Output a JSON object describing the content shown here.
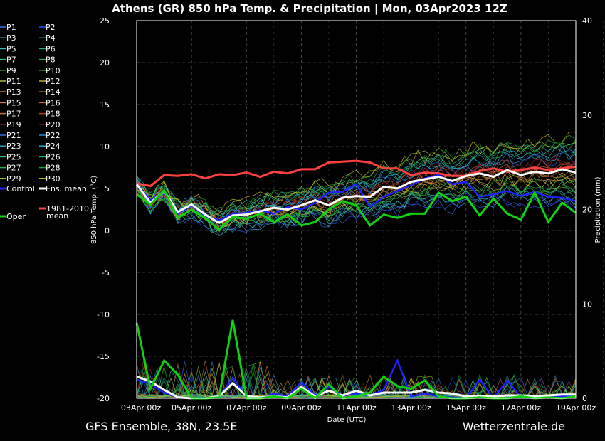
{
  "chart_data": {
    "type": "line",
    "title": "Athens  (GR)  850 hPa Temp. & Precipitation | Mon, 03Apr2023 12Z",
    "xlabel": "Date (UTC)",
    "ylabel": "850 hPa Temp. (°C)",
    "ylabel_right": "Precipitation (mm)",
    "footer_left": "GFS Ensemble, 38N, 23.5E",
    "footer_right": "Wetterzentrale.de",
    "x_ticks": [
      "03Apr 00z",
      "05Apr 00z",
      "07Apr 00z",
      "09Apr 00z",
      "11Apr 00z",
      "13Apr 00z",
      "15Apr 00z",
      "17Apr 00z",
      "19Apr 00z"
    ],
    "x_range_hours": [
      0,
      384
    ],
    "ylim": [
      -20,
      25
    ],
    "y_ticks": [
      25,
      20,
      15,
      10,
      5,
      0,
      -5,
      -10,
      -15,
      -20
    ],
    "ylim_right": [
      0,
      40
    ],
    "y_ticks_right": [
      40,
      30,
      20,
      10,
      0
    ],
    "grid": true,
    "legend_placement": "left",
    "legend": [
      {
        "name": "P1",
        "color": "#3c6cff"
      },
      {
        "name": "P2",
        "color": "#2255ff"
      },
      {
        "name": "P3",
        "color": "#4aa0d0"
      },
      {
        "name": "P4",
        "color": "#2a8fb0"
      },
      {
        "name": "P5",
        "color": "#30c0c0"
      },
      {
        "name": "P6",
        "color": "#20b090"
      },
      {
        "name": "P7",
        "color": "#20c070"
      },
      {
        "name": "P8",
        "color": "#30a850"
      },
      {
        "name": "P9",
        "color": "#40c030"
      },
      {
        "name": "P10",
        "color": "#30d010"
      },
      {
        "name": "P11",
        "color": "#b0c040"
      },
      {
        "name": "P12",
        "color": "#c8b030"
      },
      {
        "name": "P13",
        "color": "#e0b040"
      },
      {
        "name": "P14",
        "color": "#d09020"
      },
      {
        "name": "P15",
        "color": "#d08050"
      },
      {
        "name": "P16",
        "color": "#c06030"
      },
      {
        "name": "P17",
        "color": "#d07040"
      },
      {
        "name": "P18",
        "color": "#c04020"
      },
      {
        "name": "P19",
        "color": "#c03030"
      },
      {
        "name": "P20",
        "color": "#902020"
      },
      {
        "name": "P21",
        "color": "#3070e0"
      },
      {
        "name": "P22",
        "color": "#2090e0"
      },
      {
        "name": "P23",
        "color": "#30a0c0"
      },
      {
        "name": "P24",
        "color": "#20b0d0"
      },
      {
        "name": "P25",
        "color": "#20c0a0"
      },
      {
        "name": "P26",
        "color": "#10c080"
      },
      {
        "name": "P27",
        "color": "#30b040"
      },
      {
        "name": "P28",
        "color": "#20a030"
      },
      {
        "name": "P29",
        "color": "#90d030"
      },
      {
        "name": "P30",
        "color": "#d0c020"
      },
      {
        "name": "Control",
        "color": "#2020ff"
      },
      {
        "name": "Ens. mean",
        "color": "#ffffff"
      },
      {
        "name": "1981-2010 mean",
        "color": "#ff4040"
      },
      {
        "name": "Oper",
        "color": "#10d010"
      }
    ],
    "series": [
      {
        "name": "1981-2010 mean",
        "color": "#ff4040",
        "x": [
          0,
          12,
          24,
          36,
          48,
          60,
          72,
          84,
          96,
          108,
          120,
          132,
          144,
          156,
          168,
          180,
          192,
          204,
          216,
          228,
          240,
          252,
          264,
          276,
          288,
          300,
          312,
          324,
          336,
          348,
          360,
          372,
          384
        ],
        "values": [
          5.6,
          5.3,
          6.6,
          6.5,
          6.7,
          6.2,
          6.7,
          6.6,
          6.9,
          6.4,
          7.0,
          6.8,
          7.3,
          7.3,
          8.1,
          8.2,
          8.3,
          8.1,
          7.4,
          7.4,
          6.6,
          6.9,
          6.8,
          6.5,
          6.5,
          7.1,
          7.4,
          7.0,
          7.2,
          7.5,
          7.2,
          7.4,
          7.6
        ]
      },
      {
        "name": "Control",
        "color": "#2020ff",
        "x": [
          0,
          12,
          24,
          36,
          48,
          60,
          72,
          84,
          96,
          108,
          120,
          132,
          144,
          156,
          168,
          180,
          192,
          204,
          216,
          228,
          240,
          252,
          264,
          276,
          288,
          300,
          312,
          324,
          336,
          348,
          360,
          372,
          384
        ],
        "values": [
          5.5,
          3.6,
          4.6,
          2.0,
          3.0,
          1.7,
          1.2,
          2.0,
          2.1,
          2.4,
          2.0,
          2.8,
          2.5,
          3.3,
          4.5,
          4.6,
          5.5,
          2.8,
          4.0,
          4.7,
          5.4,
          6.2,
          6.6,
          5.5,
          5.8,
          4.0,
          4.3,
          4.7,
          4.1,
          4.6,
          4.0,
          3.9,
          3.5
        ]
      },
      {
        "name": "Ens. mean",
        "color": "#ffffff",
        "x": [
          0,
          12,
          24,
          36,
          48,
          60,
          72,
          84,
          96,
          108,
          120,
          132,
          144,
          156,
          168,
          180,
          192,
          204,
          216,
          228,
          240,
          252,
          264,
          276,
          288,
          300,
          312,
          324,
          336,
          348,
          360,
          372,
          384
        ],
        "values": [
          5.5,
          3.3,
          4.7,
          2.2,
          3.1,
          1.9,
          0.9,
          1.8,
          1.9,
          2.3,
          2.7,
          2.5,
          3.0,
          3.6,
          3.0,
          3.9,
          4.1,
          4.0,
          5.2,
          5.0,
          5.8,
          6.1,
          6.4,
          5.9,
          6.5,
          6.8,
          6.4,
          7.2,
          6.6,
          7.0,
          6.8,
          7.3,
          6.9
        ]
      },
      {
        "name": "Oper",
        "color": "#10d010",
        "x": [
          0,
          12,
          24,
          36,
          48,
          60,
          72,
          84,
          96,
          108,
          120,
          132,
          144,
          156,
          168,
          180,
          192,
          204,
          216,
          228,
          240,
          252,
          264,
          276,
          288,
          300,
          312,
          324,
          336,
          348,
          360,
          372,
          384
        ],
        "values": [
          4.3,
          3.1,
          4.8,
          1.5,
          2.5,
          1.5,
          0.1,
          1.6,
          1.4,
          2.0,
          1.0,
          1.9,
          0.6,
          1.0,
          2.5,
          3.5,
          3.0,
          0.6,
          1.9,
          1.5,
          2.0,
          2.0,
          4.5,
          3.5,
          4.0,
          1.8,
          3.8,
          2.0,
          1.3,
          4.5,
          1.0,
          3.3,
          2.1
        ]
      }
    ],
    "precip_series": [
      {
        "name": "Control",
        "color": "#2020ff",
        "x": [
          0,
          12,
          24,
          36,
          48,
          60,
          72,
          84,
          96,
          108,
          120,
          132,
          144,
          156,
          168,
          180,
          192,
          204,
          216,
          228,
          240,
          252,
          264,
          276,
          288,
          300,
          312,
          324,
          336,
          348,
          360,
          372,
          384
        ],
        "values": [
          2.0,
          1.5,
          0.6,
          0.1,
          0.0,
          0.0,
          0.1,
          2.2,
          0.1,
          0.0,
          0.5,
          0.2,
          1.7,
          0.3,
          1.2,
          0.3,
          0.5,
          0.3,
          0.9,
          4.0,
          0.2,
          0.5,
          0.2,
          0.1,
          0.0,
          2.0,
          0.0,
          1.9,
          0.1,
          0.0,
          0.3,
          0.2,
          0.3
        ]
      },
      {
        "name": "Ens. mean",
        "color": "#ffffff",
        "x": [
          0,
          12,
          24,
          36,
          48,
          60,
          72,
          84,
          96,
          108,
          120,
          132,
          144,
          156,
          168,
          180,
          192,
          204,
          216,
          228,
          240,
          252,
          264,
          276,
          288,
          300,
          312,
          324,
          336,
          348,
          360,
          372,
          384
        ],
        "values": [
          2.3,
          1.8,
          0.9,
          0.1,
          0.0,
          0.0,
          0.2,
          1.6,
          0.2,
          0.1,
          0.2,
          0.1,
          1.2,
          0.2,
          0.8,
          0.3,
          0.8,
          0.3,
          0.6,
          0.6,
          0.6,
          0.9,
          0.6,
          0.5,
          0.2,
          0.2,
          0.2,
          0.3,
          0.3,
          0.2,
          0.3,
          0.4,
          0.4
        ]
      },
      {
        "name": "Oper",
        "color": "#10d010",
        "x": [
          0,
          12,
          24,
          36,
          48,
          60,
          72,
          84,
          96,
          108,
          120,
          132,
          144,
          156,
          168,
          180,
          192,
          204,
          216,
          228,
          240,
          252,
          264,
          276,
          288,
          300,
          312,
          324,
          336,
          348,
          360,
          372,
          384
        ],
        "values": [
          8.0,
          1.0,
          4.0,
          2.5,
          0.0,
          0.0,
          0.1,
          8.3,
          0.0,
          0.0,
          0.2,
          0.0,
          1.0,
          0.0,
          1.5,
          0.0,
          0.2,
          0.6,
          2.3,
          1.3,
          1.0,
          1.9,
          0.2,
          0.0,
          0.0,
          0.1,
          0.0,
          0.0,
          0.2,
          0.0,
          0.1,
          0.0,
          0.2
        ]
      }
    ]
  }
}
